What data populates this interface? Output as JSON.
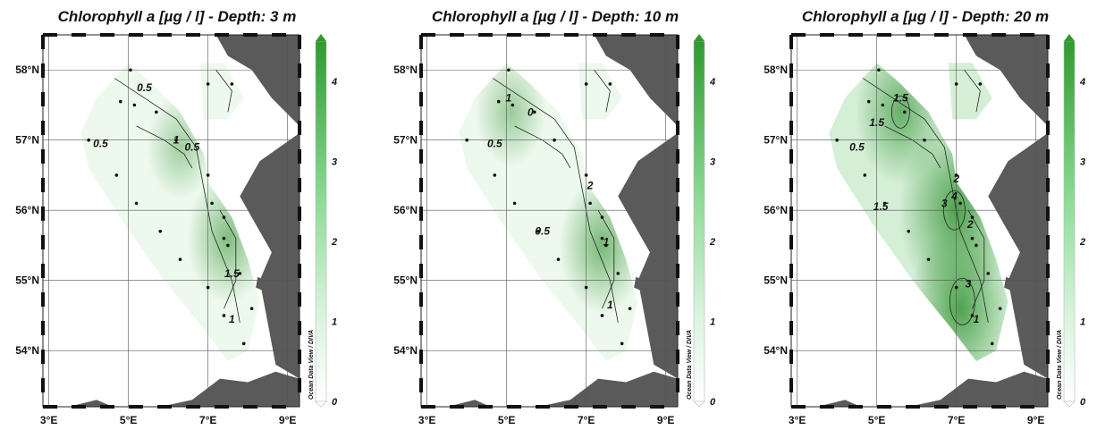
{
  "map": {
    "credit": "Ocean Data View / DIVA",
    "lon_ticks": [
      "3°E",
      "5°E",
      "7°E",
      "9°E"
    ],
    "lat_ticks": [
      "58°N",
      "57°N",
      "56°N",
      "55°N",
      "54°N"
    ],
    "colorbar": {
      "ticks": [
        "0",
        "1",
        "2",
        "3",
        "4"
      ],
      "range": [
        0,
        4.5
      ],
      "color_low": "#ffffff",
      "color_high": "#2f9a2f"
    },
    "colors": {
      "land": "#5a5a5a",
      "field_low": "#eef9ee",
      "field_high": "#3f9a3f"
    }
  },
  "panels": [
    {
      "title": "Chlorophyll a [µg / l] - Depth: 3 m",
      "contour_labels": [
        "0.5",
        "1",
        "0.5",
        "0.5",
        "1.5",
        "1"
      ],
      "hotspots": [
        {
          "lon": 7.5,
          "lat": 55.6,
          "value": 2.0
        },
        {
          "lon": 6.3,
          "lat": 56.9,
          "value": 1.0
        }
      ]
    },
    {
      "title": "Chlorophyll a [µg / l] - Depth: 10 m",
      "contour_labels": [
        "1",
        "0",
        "0.5",
        "0.5",
        "2",
        "1",
        "1"
      ],
      "hotspots": [
        {
          "lon": 7.4,
          "lat": 55.5,
          "value": 2.3
        },
        {
          "lon": 5.1,
          "lat": 57.4,
          "value": 1.2
        }
      ]
    },
    {
      "title": "Chlorophyll a [µg / l] - Depth: 20 m",
      "contour_labels": [
        "1.5",
        "1.5",
        "0.5",
        "1.5",
        "2",
        "3",
        "4",
        "2",
        "3",
        "1"
      ],
      "hotspots": [
        {
          "lon": 7.0,
          "lat": 56.0,
          "value": 4.3
        },
        {
          "lon": 7.1,
          "lat": 54.6,
          "value": 3.5
        },
        {
          "lon": 5.6,
          "lat": 57.4,
          "value": 2.6
        }
      ]
    }
  ],
  "stations": [
    {
      "lon": 5.05,
      "lat": 58.0
    },
    {
      "lon": 7.0,
      "lat": 57.8
    },
    {
      "lon": 7.6,
      "lat": 57.8
    },
    {
      "lon": 4.8,
      "lat": 57.55
    },
    {
      "lon": 5.15,
      "lat": 57.5
    },
    {
      "lon": 5.7,
      "lat": 57.4
    },
    {
      "lon": 4.0,
      "lat": 57.0
    },
    {
      "lon": 6.2,
      "lat": 57.0
    },
    {
      "lon": 4.7,
      "lat": 56.5
    },
    {
      "lon": 7.0,
      "lat": 56.5
    },
    {
      "lon": 5.2,
      "lat": 56.1
    },
    {
      "lon": 7.1,
      "lat": 56.1
    },
    {
      "lon": 7.4,
      "lat": 55.9
    },
    {
      "lon": 5.8,
      "lat": 55.7
    },
    {
      "lon": 7.4,
      "lat": 55.6
    },
    {
      "lon": 7.5,
      "lat": 55.5
    },
    {
      "lon": 6.3,
      "lat": 55.3
    },
    {
      "lon": 7.8,
      "lat": 55.1
    },
    {
      "lon": 7.0,
      "lat": 54.9
    },
    {
      "lon": 8.1,
      "lat": 54.6
    },
    {
      "lon": 7.4,
      "lat": 54.5
    },
    {
      "lon": 7.9,
      "lat": 54.1
    }
  ]
}
